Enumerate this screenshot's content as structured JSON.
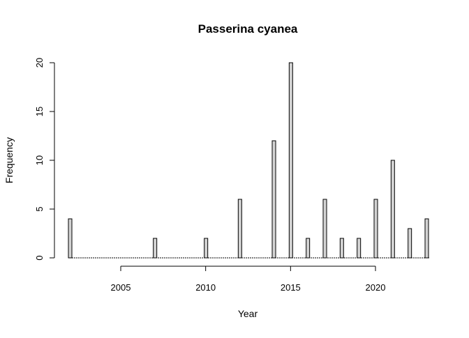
{
  "chart_data": {
    "type": "bar",
    "title": "Passerina cyanea",
    "xlabel": "Year",
    "ylabel": "Frequency",
    "xlim": [
      2002,
      2023
    ],
    "ylim": [
      0,
      20
    ],
    "x_ticks": [
      "2005",
      "2010",
      "2015",
      "2020"
    ],
    "y_ticks": [
      "0",
      "5",
      "10",
      "15",
      "20"
    ],
    "bar_fill": "#d3d3d3",
    "bar_stroke": "#000000",
    "series": [
      {
        "x": [
          2002,
          2007,
          2010,
          2012,
          2014,
          2015,
          2016,
          2017,
          2018,
          2019,
          2020,
          2021,
          2022,
          2023
        ],
        "values": [
          4,
          2,
          2,
          6,
          12,
          20,
          2,
          6,
          2,
          2,
          6,
          10,
          3,
          4
        ]
      }
    ]
  }
}
